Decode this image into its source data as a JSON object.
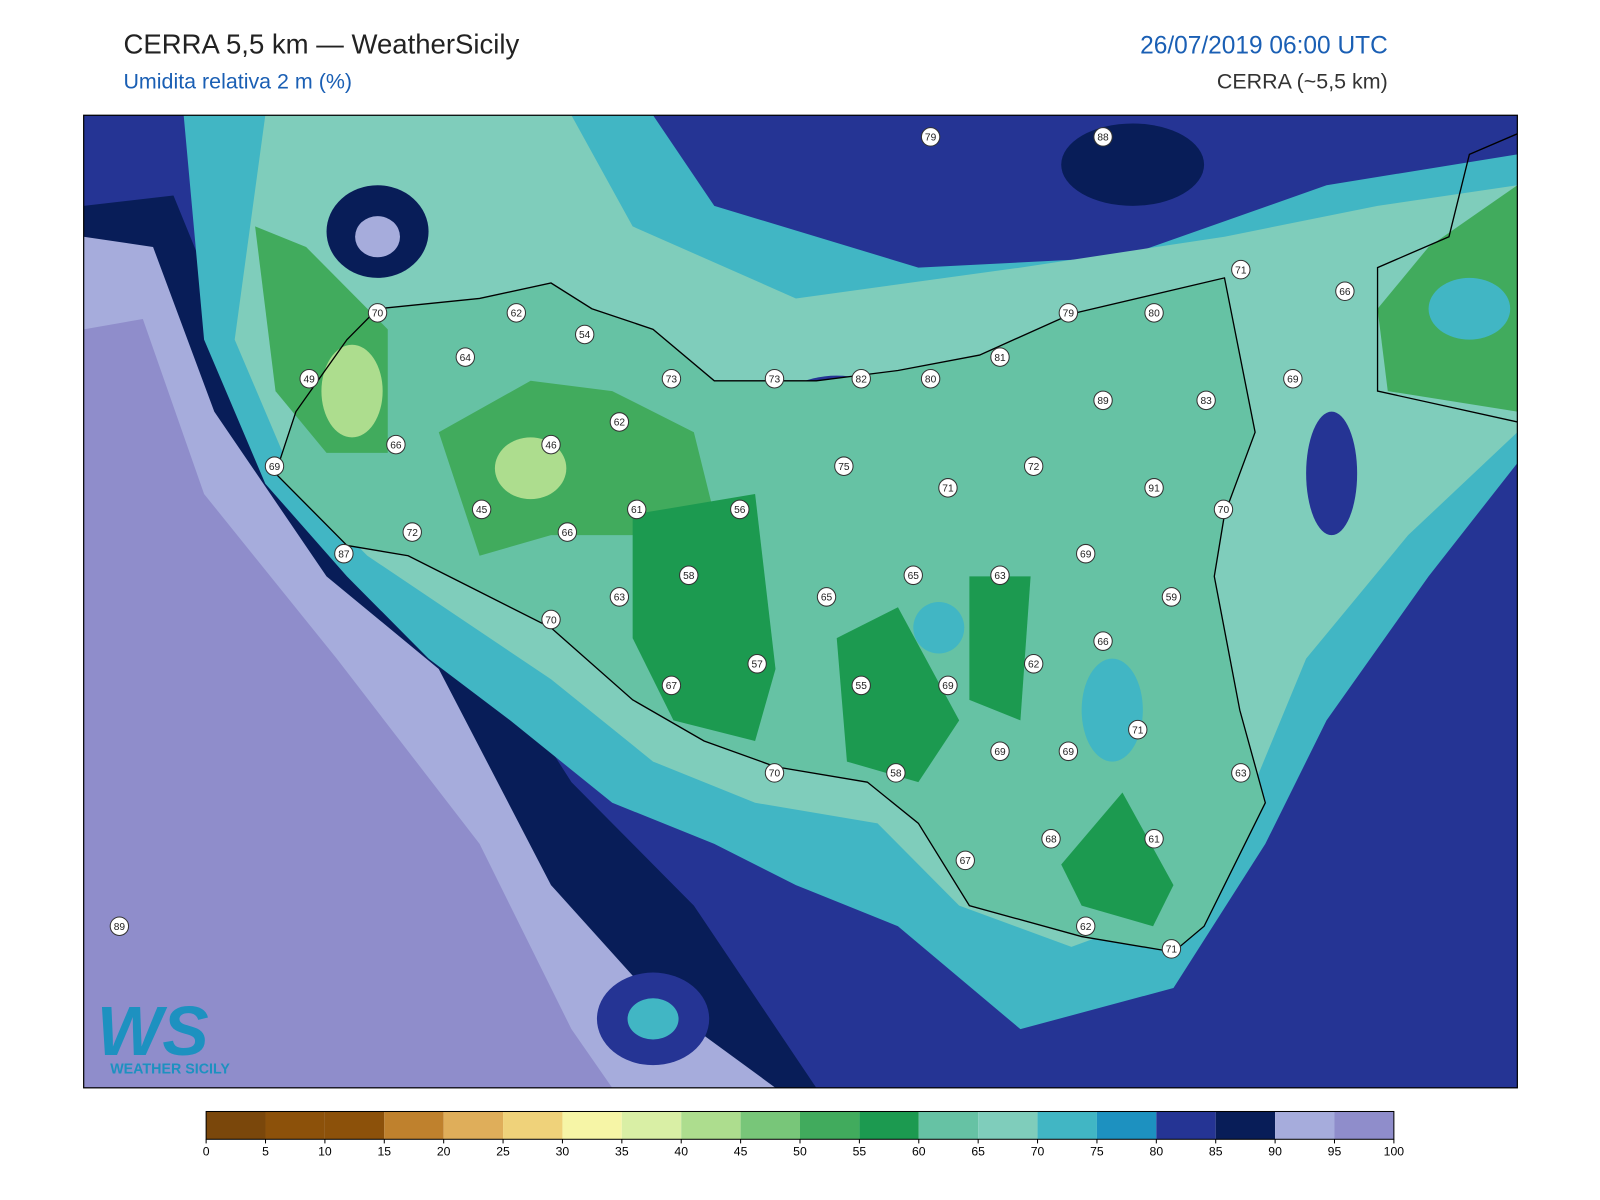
{
  "header": {
    "title": "CERRA 5,5 km — WeatherSicily",
    "subtitle": "Umidita relativa 2 m (%)",
    "date": "26/07/2019 06:00 UTC",
    "model": "CERRA (~5,5 km)"
  },
  "stations": [
    79,
    88,
    71,
    66,
    70,
    62,
    54,
    79,
    80,
    64,
    81,
    49,
    73,
    73,
    82,
    80,
    89,
    83,
    69,
    62,
    66,
    46,
    69,
    75,
    72,
    71,
    91,
    45,
    61,
    56,
    70,
    72,
    66,
    87,
    69,
    58,
    65,
    63,
    63,
    65,
    59,
    70,
    66,
    57,
    62,
    67,
    55,
    69,
    71,
    69,
    69,
    70,
    58,
    63,
    68,
    61,
    67,
    89,
    62,
    71
  ],
  "colorbar": {
    "ticks": [
      0,
      5,
      10,
      15,
      20,
      25,
      30,
      35,
      40,
      45,
      50,
      55,
      60,
      65,
      70,
      75,
      80,
      85,
      90,
      95,
      100
    ],
    "colors": [
      "#7a470b",
      "#8c510a",
      "#8c510a",
      "#bf812d",
      "#dfae5a",
      "#efd27a",
      "#f6f5a6",
      "#d9efa5",
      "#addd8e",
      "#78c679",
      "#41ab5d",
      "#1c9a50",
      "#66c2a4",
      "#7fcdbb",
      "#41b6c4",
      "#1d91c0",
      "#253494",
      "#081d58",
      "#a6acdc",
      "#8f8dcb"
    ]
  },
  "logo": {
    "letters": "WS",
    "text": "WEATHER SICILY"
  }
}
